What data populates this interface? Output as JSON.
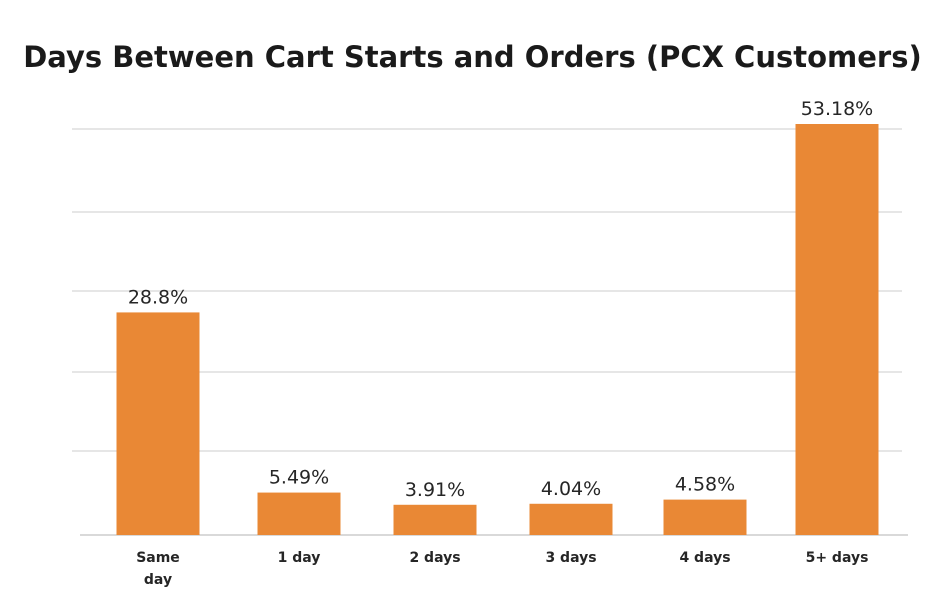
{
  "chart_data": {
    "type": "bar",
    "title": "Days Between Cart Starts and Orders (PCX Customers)",
    "categories": [
      "Same day",
      "1 day",
      "2 days",
      "3 days",
      "4 days",
      "5+ days"
    ],
    "values": [
      28.8,
      5.49,
      3.91,
      4.04,
      4.58,
      53.18
    ],
    "data_labels": [
      "28.8%",
      "5.49%",
      "3.91%",
      "4.04%",
      "4.58%",
      "53.18%"
    ],
    "xlabel": "",
    "ylabel": "",
    "ylim": [
      0,
      53.18
    ],
    "grid": true,
    "legend": "none",
    "colors": {
      "bar": "#e98835",
      "grid": "#e6e6e6"
    }
  }
}
